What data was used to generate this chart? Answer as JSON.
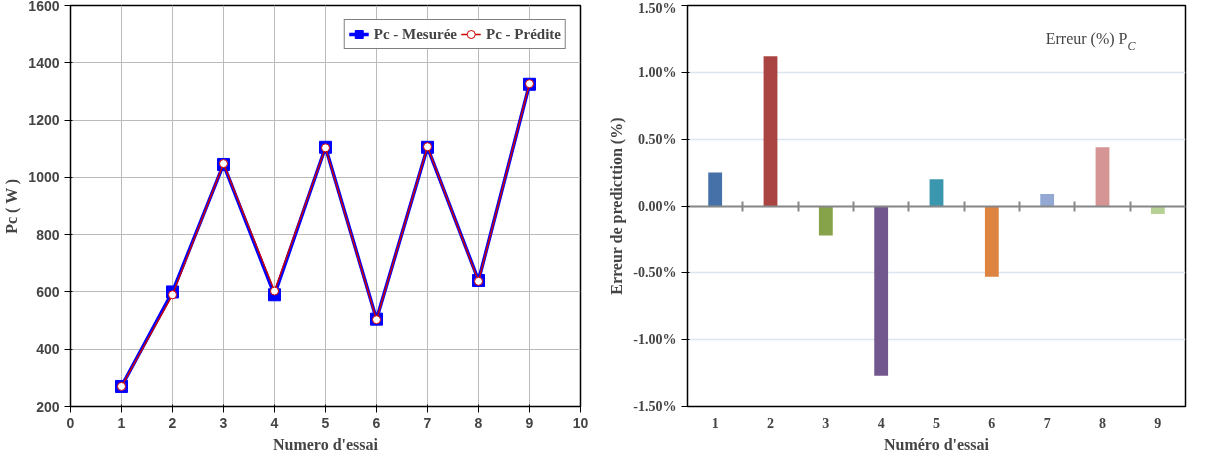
{
  "chart_data": [
    {
      "type": "line",
      "xlabel": "Numero d'essai",
      "ylabel": "Pc ( W )",
      "x": [
        1,
        2,
        3,
        4,
        5,
        6,
        7,
        8,
        9
      ],
      "series": [
        {
          "name": "Pc - Mesurée",
          "color": "#0000ff",
          "marker": "square",
          "values": [
            270,
            600,
            1045,
            590,
            1105,
            505,
            1105,
            640,
            1325
          ]
        },
        {
          "name": "Pc - Prédite",
          "color": "#cc0000",
          "marker": "circle",
          "values": [
            270,
            590,
            1048,
            603,
            1103,
            503,
            1107,
            637,
            1327
          ]
        }
      ],
      "xlim": [
        0,
        10
      ],
      "xticks": [
        0,
        1,
        2,
        3,
        4,
        5,
        6,
        7,
        8,
        9,
        10
      ],
      "ylim": [
        200,
        1600
      ],
      "yticks": [
        200,
        400,
        600,
        800,
        1000,
        1200,
        1400,
        1600
      ],
      "grid": true,
      "legend": "top right",
      "line_style": "solid"
    },
    {
      "type": "bar",
      "xlabel": "Numéro d'essai",
      "ylabel": "Erreur de predicttion (%)",
      "categories": [
        "1",
        "2",
        "3",
        "4",
        "5",
        "6",
        "7",
        "8",
        "9"
      ],
      "values": [
        0.25,
        1.12,
        -0.22,
        -1.27,
        0.2,
        -0.53,
        0.09,
        0.44,
        -0.06
      ],
      "colors": [
        "#4570a8",
        "#a94442",
        "#87a34a",
        "#72578e",
        "#3b97ad",
        "#dd8540",
        "#93a9d4",
        "#d49594",
        "#b7d195"
      ],
      "ylim": [
        -1.5,
        1.5
      ],
      "yticks": [
        {
          "value": -1.5,
          "label": "-1.50%"
        },
        {
          "value": -1.0,
          "label": "-1.00%"
        },
        {
          "value": -0.5,
          "label": "-0.50%"
        },
        {
          "value": 0.0,
          "label": "0.00%"
        },
        {
          "value": 0.5,
          "label": "0.50%"
        },
        {
          "value": 1.0,
          "label": "1.00%"
        },
        {
          "value": 1.5,
          "label": "1.50%"
        }
      ],
      "grid": "y",
      "annotations": [
        "Erreur (%) P$_{C}$"
      ]
    }
  ]
}
